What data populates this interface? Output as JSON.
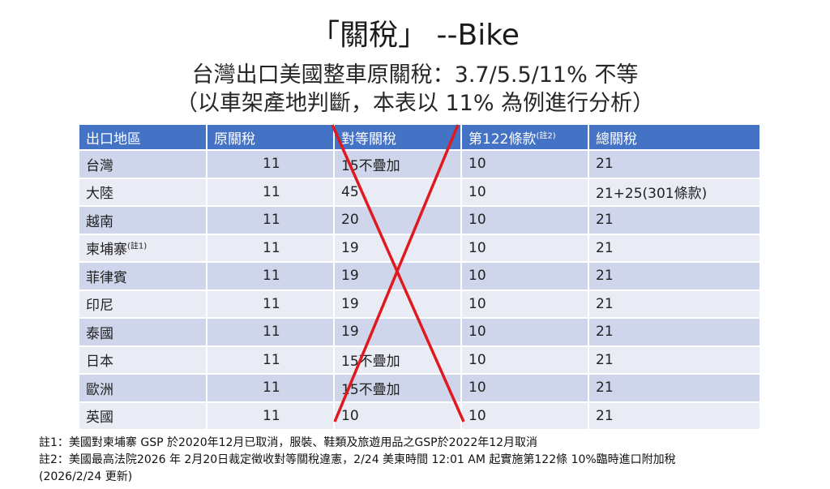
{
  "title": "「關稅」 --Bike",
  "subtitle_line1": "台灣出口美國整車原關稅：3.7/5.5/11% 不等",
  "subtitle_line2": "（以車架產地判斷，本表以 11% 為例進行分析）",
  "table": {
    "headers": [
      "出口地區",
      "原關稅",
      "對等關稅",
      "第122條款",
      "總關稅"
    ],
    "header_note": "(註2)",
    "rows": [
      {
        "region": "台灣",
        "note": "",
        "original": "11",
        "reciprocal": "15不疊加",
        "sec122": "10",
        "total": "21"
      },
      {
        "region": "大陸",
        "note": "",
        "original": "11",
        "reciprocal": "45",
        "sec122": "10",
        "total": "21+25(301條款)"
      },
      {
        "region": "越南",
        "note": "",
        "original": "11",
        "reciprocal": "20",
        "sec122": "10",
        "total": "21"
      },
      {
        "region": "柬埔寨",
        "note": "(註1)",
        "original": "11",
        "reciprocal": "19",
        "sec122": "10",
        "total": "21"
      },
      {
        "region": "菲律賓",
        "note": "",
        "original": "11",
        "reciprocal": "19",
        "sec122": "10",
        "total": "21"
      },
      {
        "region": "印尼",
        "note": "",
        "original": "11",
        "reciprocal": "19",
        "sec122": "10",
        "total": "21"
      },
      {
        "region": "泰國",
        "note": "",
        "original": "11",
        "reciprocal": "19",
        "sec122": "10",
        "total": "21"
      },
      {
        "region": "日本",
        "note": "",
        "original": "11",
        "reciprocal": "15不疊加",
        "sec122": "10",
        "total": "21"
      },
      {
        "region": "歐洲",
        "note": "",
        "original": "11",
        "reciprocal": "15不疊加",
        "sec122": "10",
        "total": "21"
      },
      {
        "region": "英國",
        "note": "",
        "original": "11",
        "reciprocal": "10",
        "sec122": "10",
        "total": "21"
      }
    ]
  },
  "notes": [
    "註1：美國對柬埔寨 GSP 於2020年12月已取消，服裝、鞋類及旅遊用品之GSP於2022年12月取消",
    "註2：美國最高法院2026 年 2月20日裁定徵收對等關稅違憲，2/24 美東時間 12:01 AM 起實施第122條 10%臨時進口附加稅",
    "(2026/2/24 更新)"
  ],
  "colors": {
    "header_bg": "#4472c4",
    "row_odd": "#cfd5ea",
    "row_even": "#e9ebf5",
    "cross": "#e0191e"
  }
}
